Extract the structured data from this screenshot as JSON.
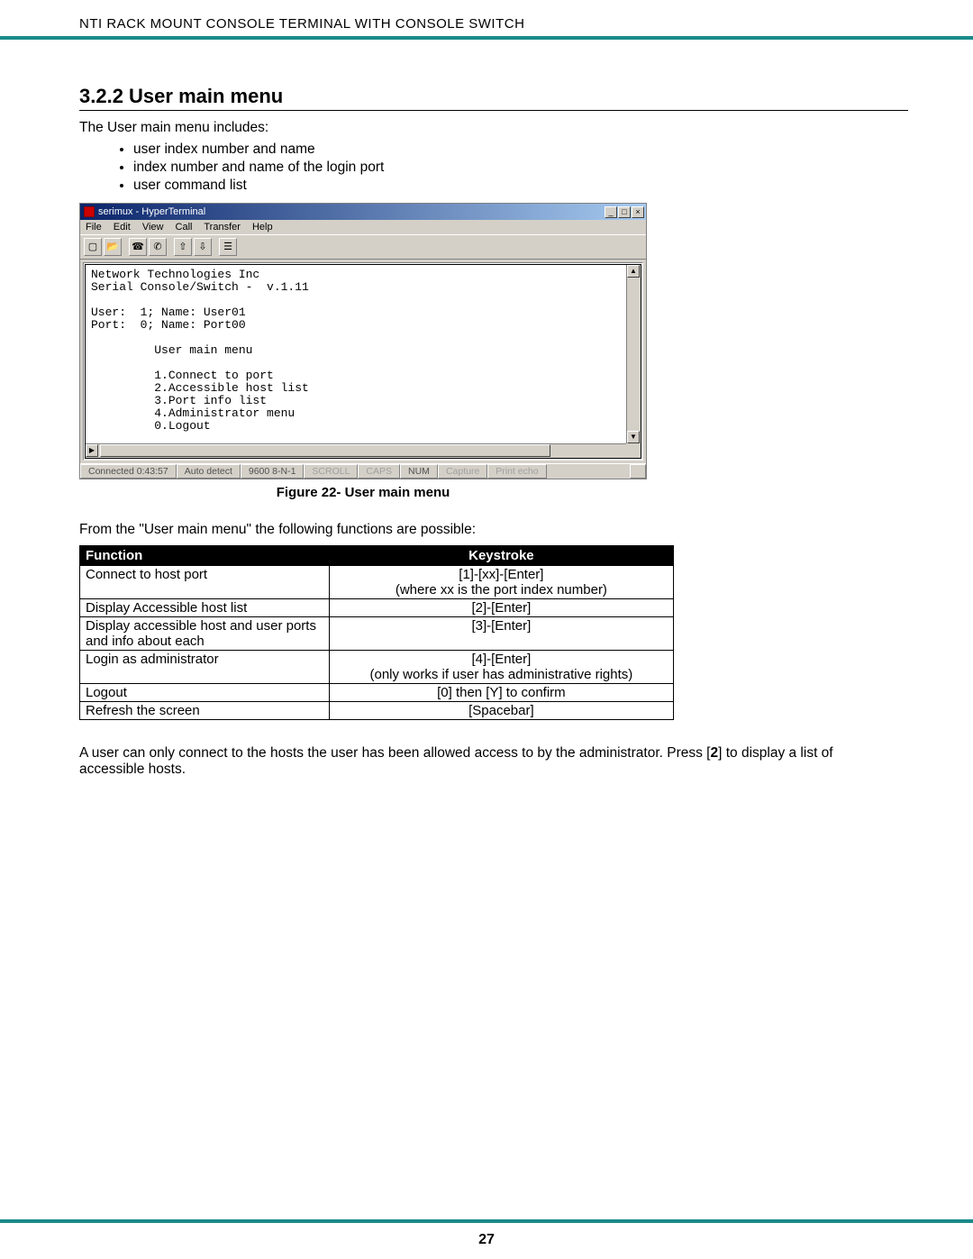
{
  "header": "NTI RACK MOUNT CONSOLE TERMINAL WITH CONSOLE SWITCH",
  "page_number": "27",
  "section_title": "3.2.2 User main menu",
  "intro": "The User main menu includes:",
  "bullets": [
    "user index number and name",
    "index number and name of the login port",
    "user command list"
  ],
  "figure_caption": "Figure 22- User main menu",
  "after_figure": "From the \"User main menu\" the following functions are possible:",
  "hyperterminal": {
    "title": "serimux - HyperTerminal",
    "menus": [
      "File",
      "Edit",
      "View",
      "Call",
      "Transfer",
      "Help"
    ],
    "toolbar_icons": [
      "new-icon",
      "open-icon",
      "connect-icon",
      "disconnect-icon",
      "send-icon",
      "receive-icon",
      "properties-icon"
    ],
    "terminal_text": "Network Technologies Inc\nSerial Console/Switch -  v.1.11\n\nUser:  1; Name: User01\nPort:  0; Name: Port00\n\n         User main menu\n\n         1.Connect to port\n         2.Accessible host list\n         3.Port info list\n         4.Administrator menu\n         0.Logout",
    "status": {
      "connected": "Connected 0:43:57",
      "detect": "Auto detect",
      "settings": "9600 8-N-1",
      "scroll": "SCROLL",
      "caps": "CAPS",
      "num": "NUM",
      "capture": "Capture",
      "echo": "Print echo"
    },
    "win_min": "_",
    "win_max": "□",
    "win_close": "×"
  },
  "table": {
    "headers": {
      "function": "Function",
      "keystroke": "Keystroke"
    },
    "rows": [
      {
        "fn": "Connect to host port",
        "ks": "[1]-[xx]-[Enter]\n(where xx is the port index number)"
      },
      {
        "fn": "Display Accessible host list",
        "ks": "[2]-[Enter]"
      },
      {
        "fn": "Display accessible host and user ports and info about each",
        "ks": "[3]-[Enter]"
      },
      {
        "fn": "Login as administrator",
        "ks": "[4]-[Enter]\n(only works if user has administrative rights)"
      },
      {
        "fn": "Logout",
        "ks": "[0]  then [Y] to confirm"
      },
      {
        "fn": "Refresh the screen",
        "ks": "[Spacebar]"
      }
    ]
  },
  "footer_para_a": "A user can only connect to the hosts the user has been allowed access to by the administrator.   Press [",
  "footer_para_b": "2",
  "footer_para_c": "] to display a list of accessible hosts.",
  "colors": {
    "rule": "#1a8a8a",
    "table_header_bg": "#000000",
    "table_header_fg": "#ffffff",
    "win_bg": "#d4d0c8",
    "titlebar_start": "#0a246a",
    "titlebar_end": "#a6caf0"
  }
}
